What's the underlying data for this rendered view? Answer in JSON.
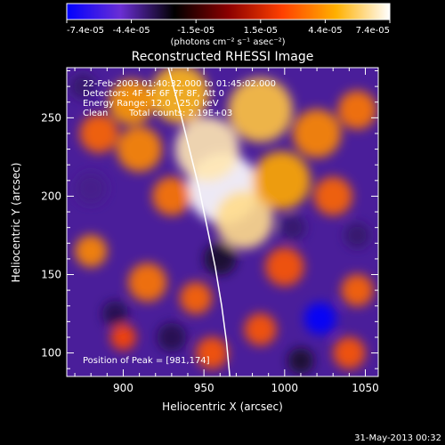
{
  "chart_data": {
    "type": "heatmap",
    "title": "Reconstructed RHESSI Image",
    "xlabel": "Heliocentric X (arcsec)",
    "ylabel": "Heliocentric Y (arcsec)",
    "xlim": [
      865,
      1058
    ],
    "ylim": [
      85,
      282
    ],
    "x_ticks": [
      900,
      950,
      1000,
      1050
    ],
    "y_ticks": [
      100,
      150,
      200,
      250
    ],
    "colorbar": {
      "range": [
        -7.4e-05,
        7.4e-05
      ],
      "tick_labels": [
        "-7.4e-05",
        "-4.4e-05",
        "-1.5e-05",
        "1.5e-05",
        "4.4e-05",
        "7.4e-05"
      ],
      "unit_label": "(photons cm⁻² s⁻¹ asec⁻²)",
      "colormap": [
        "#0000ff",
        "#6a2ed4",
        "#000000",
        "#8b0000",
        "#ff4000",
        "#ffb000",
        "#ffffff"
      ]
    },
    "annotations": [
      "22-Feb-2003 01:40:32.000 to 01:45:02.000",
      "Detectors: 4F 5F 6F 7F 8F, Att 0",
      "Energy Range: 12.0 - 25.0 keV",
      "Clean",
      "Total counts: 2.19E+03",
      "Position of Peak = [981,174]"
    ],
    "peak": {
      "x": 981,
      "y": 174
    },
    "limb_curve": {
      "x": [
        928,
        935,
        941,
        947,
        952,
        957,
        961,
        964,
        966
      ],
      "y": [
        282,
        255,
        230,
        205,
        180,
        155,
        130,
        107,
        85
      ]
    },
    "blobs": [
      {
        "x": 962,
        "y": 205,
        "r": 22,
        "v": 1.0
      },
      {
        "x": 952,
        "y": 230,
        "r": 20,
        "v": 0.9
      },
      {
        "x": 975,
        "y": 185,
        "r": 18,
        "v": 0.85
      },
      {
        "x": 998,
        "y": 210,
        "r": 18,
        "v": 0.65
      },
      {
        "x": 985,
        "y": 255,
        "r": 20,
        "v": 0.75
      },
      {
        "x": 1020,
        "y": 240,
        "r": 15,
        "v": 0.55
      },
      {
        "x": 935,
        "y": 265,
        "r": 18,
        "v": 0.7
      },
      {
        "x": 905,
        "y": 260,
        "r": 14,
        "v": 0.6
      },
      {
        "x": 910,
        "y": 230,
        "r": 14,
        "v": 0.55
      },
      {
        "x": 930,
        "y": 200,
        "r": 12,
        "v": 0.5
      },
      {
        "x": 1030,
        "y": 200,
        "r": 12,
        "v": 0.45
      },
      {
        "x": 1045,
        "y": 255,
        "r": 12,
        "v": 0.5
      },
      {
        "x": 885,
        "y": 240,
        "r": 12,
        "v": 0.45
      },
      {
        "x": 880,
        "y": 165,
        "r": 10,
        "v": 0.55
      },
      {
        "x": 915,
        "y": 145,
        "r": 12,
        "v": 0.5
      },
      {
        "x": 945,
        "y": 135,
        "r": 10,
        "v": 0.45
      },
      {
        "x": 1000,
        "y": 155,
        "r": 12,
        "v": 0.4
      },
      {
        "x": 985,
        "y": 115,
        "r": 10,
        "v": 0.4
      },
      {
        "x": 1045,
        "y": 140,
        "r": 10,
        "v": 0.45
      },
      {
        "x": 1040,
        "y": 100,
        "r": 10,
        "v": 0.4
      },
      {
        "x": 955,
        "y": 100,
        "r": 10,
        "v": 0.4
      },
      {
        "x": 900,
        "y": 110,
        "r": 8,
        "v": 0.35
      },
      {
        "x": 875,
        "y": 270,
        "r": 8,
        "v": -0.5
      },
      {
        "x": 1022,
        "y": 122,
        "r": 10,
        "v": -1.0
      },
      {
        "x": 880,
        "y": 205,
        "r": 10,
        "v": -0.55
      },
      {
        "x": 1005,
        "y": 180,
        "r": 8,
        "v": -0.5
      },
      {
        "x": 960,
        "y": 160,
        "r": 10,
        "v": -0.4
      },
      {
        "x": 895,
        "y": 125,
        "r": 8,
        "v": -0.45
      },
      {
        "x": 1045,
        "y": 175,
        "r": 8,
        "v": -0.5
      },
      {
        "x": 930,
        "y": 110,
        "r": 9,
        "v": -0.45
      },
      {
        "x": 1010,
        "y": 95,
        "r": 8,
        "v": -0.4
      }
    ]
  },
  "footer": {
    "timestamp": "31-May-2013 00:32"
  }
}
